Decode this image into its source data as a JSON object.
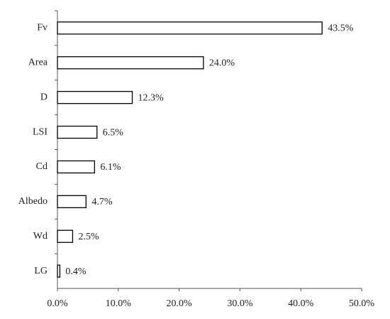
{
  "chart_data": {
    "type": "bar",
    "orientation": "horizontal",
    "categories": [
      "Fv",
      "Area",
      "D",
      "LSI",
      "Cd",
      "Albedo",
      "Wd",
      "LG"
    ],
    "values": [
      43.5,
      24.0,
      12.3,
      6.5,
      6.1,
      4.7,
      2.5,
      0.4
    ],
    "value_labels": [
      "43.5%",
      "24.0%",
      "12.3%",
      "6.5%",
      "6.1%",
      "4.7%",
      "2.5%",
      "0.4%"
    ],
    "color": "#ffffff",
    "edgecolor": "#000000",
    "xlim": [
      0,
      50
    ],
    "xticks": [
      {
        "value": 0,
        "label": "0.0%"
      },
      {
        "value": 10,
        "label": "10.0%"
      },
      {
        "value": 20,
        "label": "20.0%"
      },
      {
        "value": 30,
        "label": "30.0%"
      },
      {
        "value": 40,
        "label": "40.0%"
      },
      {
        "value": 50,
        "label": "50.0%"
      }
    ],
    "grid": false
  }
}
